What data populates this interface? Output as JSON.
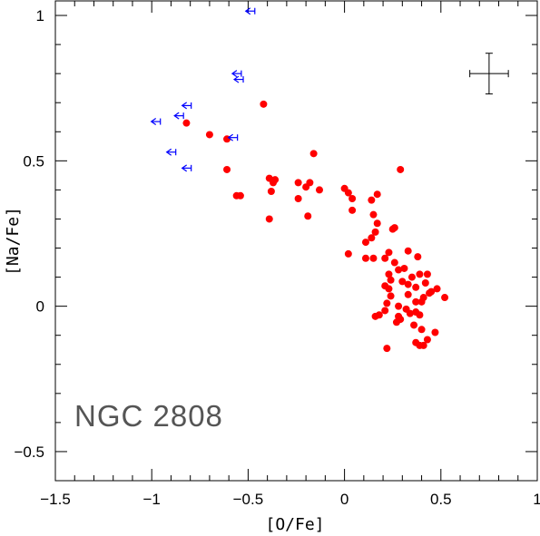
{
  "chart_data": {
    "type": "scatter",
    "title": "",
    "xlabel": "[O/Fe]",
    "ylabel": "[Na/Fe]",
    "xlim": [
      -1.5,
      1.0
    ],
    "ylim": [
      -0.6,
      1.05
    ],
    "x_ticks": [
      -1.5,
      -1,
      -0.5,
      0,
      0.5,
      1
    ],
    "x_tick_labels": [
      "−1.5",
      "−1",
      "−0.5",
      "0",
      "0.5",
      "1"
    ],
    "y_ticks": [
      -0.5,
      0,
      0.5,
      1
    ],
    "y_tick_labels": [
      "−0.5",
      "0",
      "0.5",
      "1"
    ],
    "annotation": "NGC 2808",
    "error_bar": {
      "x": 0.75,
      "y": 0.8,
      "xerr": 0.1,
      "yerr": 0.07
    },
    "series": [
      {
        "marker": "filled-circle",
        "color": "#ff0000",
        "points": [
          [
            -0.42,
            0.695
          ],
          [
            -0.82,
            0.63
          ],
          [
            -0.7,
            0.59
          ],
          [
            -0.61,
            0.575
          ],
          [
            -0.61,
            0.47
          ],
          [
            -0.56,
            0.38
          ],
          [
            -0.54,
            0.38
          ],
          [
            -0.39,
            0.44
          ],
          [
            -0.37,
            0.425
          ],
          [
            -0.36,
            0.435
          ],
          [
            -0.38,
            0.395
          ],
          [
            -0.39,
            0.3
          ],
          [
            -0.24,
            0.425
          ],
          [
            -0.24,
            0.37
          ],
          [
            -0.2,
            0.41
          ],
          [
            -0.18,
            0.425
          ],
          [
            -0.19,
            0.31
          ],
          [
            -0.16,
            0.525
          ],
          [
            -0.13,
            0.4
          ],
          [
            0.0,
            0.405
          ],
          [
            0.02,
            0.39
          ],
          [
            0.04,
            0.37
          ],
          [
            0.04,
            0.33
          ],
          [
            0.02,
            0.18
          ],
          [
            0.14,
            0.365
          ],
          [
            0.15,
            0.315
          ],
          [
            0.17,
            0.385
          ],
          [
            0.16,
            0.255
          ],
          [
            0.17,
            0.285
          ],
          [
            0.11,
            0.22
          ],
          [
            0.14,
            0.235
          ],
          [
            0.11,
            0.165
          ],
          [
            0.15,
            0.165
          ],
          [
            0.21,
            0.165
          ],
          [
            0.23,
            0.185
          ],
          [
            0.25,
            0.265
          ],
          [
            0.26,
            0.27
          ],
          [
            0.29,
            0.47
          ],
          [
            0.33,
            0.19
          ],
          [
            0.38,
            0.17
          ],
          [
            0.26,
            0.15
          ],
          [
            0.31,
            0.13
          ],
          [
            0.23,
            0.11
          ],
          [
            0.3,
            0.085
          ],
          [
            0.28,
            0.125
          ],
          [
            0.24,
            0.09
          ],
          [
            0.33,
            0.075
          ],
          [
            0.21,
            0.07
          ],
          [
            0.23,
            0.06
          ],
          [
            0.35,
            0.1
          ],
          [
            0.37,
            0.065
          ],
          [
            0.39,
            0.11
          ],
          [
            0.42,
            0.08
          ],
          [
            0.43,
            0.11
          ],
          [
            0.45,
            0.05
          ],
          [
            0.41,
            0.03
          ],
          [
            0.52,
            0.03
          ],
          [
            0.48,
            0.06
          ],
          [
            0.4,
            0.015
          ],
          [
            0.37,
            0.015
          ],
          [
            0.33,
            0.04
          ],
          [
            0.24,
            0.035
          ],
          [
            0.22,
            0.01
          ],
          [
            0.28,
            0.0
          ],
          [
            0.32,
            -0.01
          ],
          [
            0.37,
            -0.02
          ],
          [
            0.39,
            -0.03
          ],
          [
            0.34,
            -0.025
          ],
          [
            0.21,
            -0.015
          ],
          [
            0.18,
            -0.03
          ],
          [
            0.16,
            -0.035
          ],
          [
            0.28,
            -0.035
          ],
          [
            0.29,
            -0.045
          ],
          [
            0.27,
            -0.055
          ],
          [
            0.36,
            -0.065
          ],
          [
            0.4,
            -0.08
          ],
          [
            0.47,
            -0.09
          ],
          [
            0.43,
            -0.115
          ],
          [
            0.37,
            -0.125
          ],
          [
            0.39,
            -0.135
          ],
          [
            0.41,
            -0.135
          ],
          [
            0.22,
            -0.145
          ],
          [
            0.44,
            0.045
          ]
        ]
      },
      {
        "marker": "upper-limit-arrow",
        "color": "#0000ff",
        "points": [
          [
            -0.47,
            1.015
          ],
          [
            -0.54,
            0.8
          ],
          [
            -0.53,
            0.78
          ],
          [
            -0.56,
            0.58
          ],
          [
            -0.8,
            0.69
          ],
          [
            -0.84,
            0.655
          ],
          [
            -0.96,
            0.635
          ],
          [
            -0.88,
            0.53
          ],
          [
            -0.8,
            0.475
          ]
        ]
      }
    ]
  }
}
